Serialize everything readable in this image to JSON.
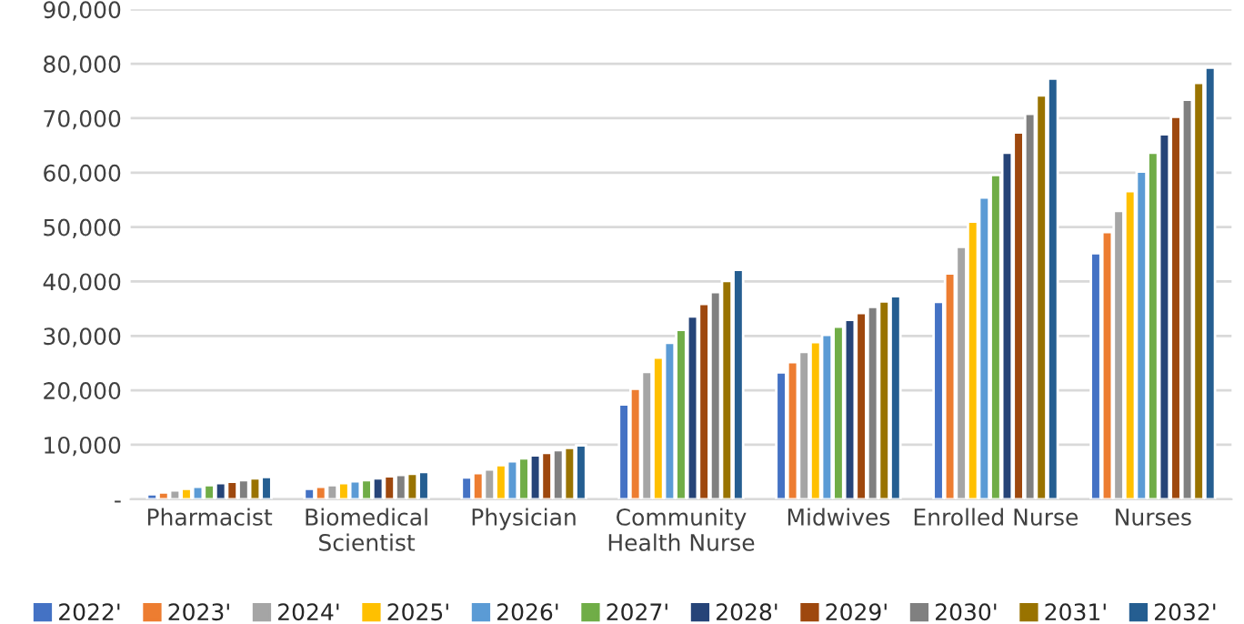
{
  "chart_data": {
    "type": "bar",
    "categories": [
      "Pharmacist",
      "Biomedical\nScientist",
      "Physician",
      "Community\nHealth Nurse",
      "Midwives",
      "Enrolled Nurse",
      "Nurses"
    ],
    "series": [
      {
        "name": "2022'",
        "color": "#4472c4",
        "values": [
          900,
          1900,
          4000,
          17400,
          23300,
          36250,
          45200
        ]
      },
      {
        "name": "2023'",
        "color": "#ed7d31",
        "values": [
          1250,
          2300,
          4800,
          20300,
          25200,
          41500,
          49100
        ]
      },
      {
        "name": "2024'",
        "color": "#a5a5a5",
        "values": [
          1600,
          2600,
          5450,
          23400,
          27050,
          46350,
          52950
        ]
      },
      {
        "name": "2025'",
        "color": "#ffc000",
        "values": [
          1900,
          2950,
          6250,
          26000,
          28850,
          51000,
          56600
        ]
      },
      {
        "name": "2026'",
        "color": "#5b9bd5",
        "values": [
          2300,
          3300,
          6950,
          28750,
          30200,
          55450,
          60200
        ]
      },
      {
        "name": "2027'",
        "color": "#70ad47",
        "values": [
          2600,
          3500,
          7500,
          31100,
          31700,
          59550,
          63650
        ]
      },
      {
        "name": "2028'",
        "color": "#264478",
        "values": [
          2950,
          3850,
          8050,
          33600,
          32950,
          63650,
          67050
        ]
      },
      {
        "name": "2029'",
        "color": "#9e480e",
        "values": [
          3200,
          4200,
          8500,
          35900,
          34200,
          67400,
          70250
        ]
      },
      {
        "name": "2030'",
        "color": "#808080",
        "values": [
          3500,
          4450,
          9000,
          38050,
          35350,
          70800,
          73400
        ]
      },
      {
        "name": "2031'",
        "color": "#997300",
        "values": [
          3850,
          4650,
          9450,
          40100,
          36350,
          74200,
          76500
        ]
      },
      {
        "name": "2032'",
        "color": "#255e91",
        "values": [
          4100,
          5000,
          9900,
          42150,
          37300,
          77300,
          79300
        ]
      }
    ],
    "ylim": [
      0,
      90000
    ],
    "yticks": [
      {
        "value": 0,
        "label": "-"
      },
      {
        "value": 10000,
        "label": "10,000"
      },
      {
        "value": 20000,
        "label": "20,000"
      },
      {
        "value": 30000,
        "label": "30,000"
      },
      {
        "value": 40000,
        "label": "40,000"
      },
      {
        "value": 50000,
        "label": "50,000"
      },
      {
        "value": 60000,
        "label": "60,000"
      },
      {
        "value": 70000,
        "label": "70,000"
      },
      {
        "value": 80000,
        "label": "80,000"
      },
      {
        "value": 90000,
        "label": "90,000"
      }
    ],
    "grid": "y",
    "legend": "bottom"
  }
}
